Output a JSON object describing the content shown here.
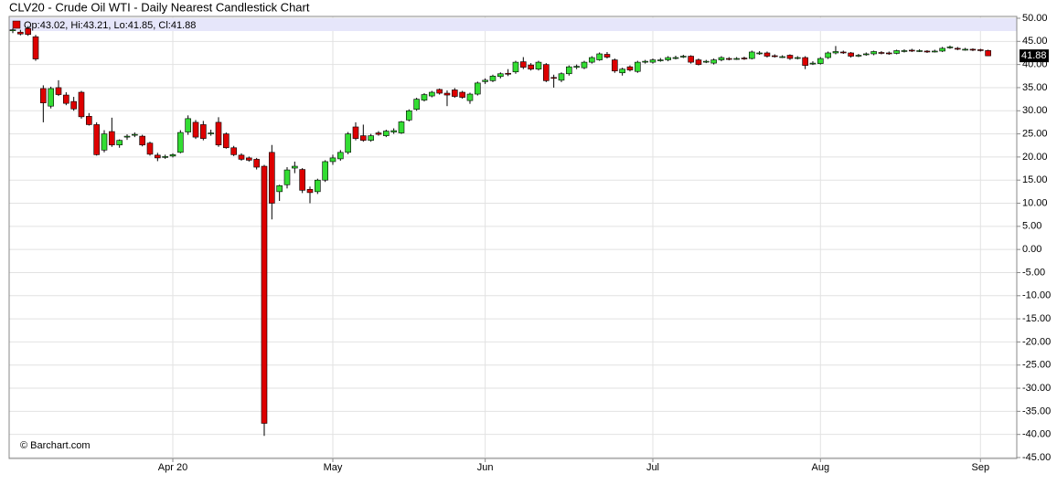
{
  "chart_data": {
    "type": "candlestick",
    "title": "CLV20 - Crude Oil WTI - Daily Nearest Candlestick Chart",
    "header_label": "Op:43.02, Hi:43.21, Lo:41.85, Cl:41.88",
    "last_price_label": "41.88",
    "watermark": "© Barchart.com",
    "up_color": "#33dd33",
    "down_color": "#dd0000",
    "grid": true,
    "ylim": [
      -45,
      50
    ],
    "yticks": [
      {
        "value": 50,
        "label": "50.00"
      },
      {
        "value": 45,
        "label": "45.00"
      },
      {
        "value": 40,
        "label": "40.00"
      },
      {
        "value": 35,
        "label": "35.00"
      },
      {
        "value": 30,
        "label": "30.00"
      },
      {
        "value": 25,
        "label": "25.00"
      },
      {
        "value": 20,
        "label": "20.00"
      },
      {
        "value": 15,
        "label": "15.00"
      },
      {
        "value": 10,
        "label": "10.00"
      },
      {
        "value": 5,
        "label": "5.00"
      },
      {
        "value": 0,
        "label": "0.00"
      },
      {
        "value": -5,
        "label": "-5.00"
      },
      {
        "value": -10,
        "label": "-10.00"
      },
      {
        "value": -15,
        "label": "-15.00"
      },
      {
        "value": -20,
        "label": "-20.00"
      },
      {
        "value": -25,
        "label": "-25.00"
      },
      {
        "value": -30,
        "label": "-30.00"
      },
      {
        "value": -35,
        "label": "-35.00"
      },
      {
        "value": -40,
        "label": "-40.00"
      },
      {
        "value": -45,
        "label": "-45.00"
      }
    ],
    "categories": [
      null,
      null,
      null,
      null,
      null,
      null,
      null,
      null,
      null,
      null,
      null,
      null,
      null,
      null,
      null,
      null,
      null,
      null,
      null,
      null,
      null,
      "Apr 20",
      null,
      null,
      null,
      null,
      null,
      null,
      null,
      null,
      null,
      null,
      null,
      null,
      null,
      null,
      null,
      null,
      null,
      null,
      null,
      null,
      "May",
      null,
      null,
      null,
      null,
      null,
      null,
      null,
      null,
      null,
      null,
      null,
      null,
      null,
      null,
      null,
      null,
      null,
      null,
      null,
      "Jun",
      null,
      null,
      null,
      null,
      null,
      null,
      null,
      null,
      null,
      null,
      null,
      null,
      null,
      null,
      null,
      null,
      null,
      null,
      null,
      null,
      null,
      "Jul",
      null,
      null,
      null,
      null,
      null,
      null,
      null,
      null,
      null,
      null,
      null,
      null,
      null,
      null,
      null,
      null,
      null,
      null,
      null,
      null,
      null,
      "Aug",
      null,
      null,
      null,
      null,
      null,
      null,
      null,
      null,
      null,
      null,
      null,
      null,
      null,
      null,
      null,
      null,
      null,
      null,
      null,
      null,
      "Sep",
      null
    ],
    "ohlc": [
      [
        47.3,
        47.8,
        46.8,
        47.5
      ],
      [
        47.0,
        47.5,
        46.3,
        46.6
      ],
      [
        47.8,
        48.3,
        46.2,
        46.5
      ],
      [
        46.0,
        46.4,
        40.8,
        41.2
      ],
      [
        34.8,
        35.5,
        27.5,
        31.7
      ],
      [
        31.0,
        35.2,
        30.5,
        34.8
      ],
      [
        35.0,
        36.6,
        33.2,
        33.5
      ],
      [
        33.4,
        34.0,
        31.2,
        31.6
      ],
      [
        32.0,
        33.0,
        30.0,
        30.4
      ],
      [
        34.0,
        34.3,
        28.3,
        28.7
      ],
      [
        28.8,
        29.5,
        26.8,
        27.0
      ],
      [
        27.0,
        27.5,
        20.3,
        20.5
      ],
      [
        21.5,
        25.8,
        21.0,
        25.0
      ],
      [
        25.5,
        28.5,
        22.2,
        22.6
      ],
      [
        22.6,
        23.8,
        22.0,
        23.6
      ],
      [
        24.3,
        24.9,
        23.7,
        24.5
      ],
      [
        24.7,
        25.3,
        24.3,
        24.9
      ],
      [
        24.5,
        24.8,
        22.3,
        22.6
      ],
      [
        23.0,
        23.3,
        20.3,
        20.6
      ],
      [
        20.4,
        20.9,
        19.1,
        19.8
      ],
      [
        19.9,
        20.5,
        19.6,
        20.1
      ],
      [
        20.2,
        20.8,
        19.9,
        20.5
      ],
      [
        21.0,
        25.8,
        20.8,
        25.3
      ],
      [
        25.4,
        29.0,
        24.8,
        28.3
      ],
      [
        27.5,
        28.0,
        23.9,
        24.3
      ],
      [
        27.0,
        27.8,
        23.6,
        24.0
      ],
      [
        25.0,
        25.9,
        24.6,
        25.2
      ],
      [
        27.5,
        28.6,
        22.2,
        22.6
      ],
      [
        25.0,
        25.3,
        21.8,
        22.0
      ],
      [
        22.0,
        22.4,
        20.2,
        20.5
      ],
      [
        20.4,
        20.8,
        19.2,
        19.5
      ],
      [
        19.8,
        20.1,
        19.0,
        19.3
      ],
      [
        19.5,
        19.8,
        17.3,
        17.8
      ],
      [
        18.0,
        18.3,
        -40.3,
        -37.6
      ],
      [
        21.0,
        22.6,
        6.5,
        10.0
      ],
      [
        12.5,
        14.0,
        10.5,
        13.8
      ],
      [
        14.0,
        17.8,
        13.2,
        17.2
      ],
      [
        17.6,
        19.0,
        16.5,
        18.0
      ],
      [
        17.3,
        17.6,
        12.2,
        12.8
      ],
      [
        13.0,
        13.6,
        10.0,
        12.3
      ],
      [
        12.5,
        15.3,
        12.0,
        15.0
      ],
      [
        15.0,
        19.3,
        14.6,
        19.0
      ],
      [
        19.0,
        20.5,
        18.3,
        19.8
      ],
      [
        19.6,
        21.5,
        19.2,
        21.0
      ],
      [
        21.0,
        25.4,
        20.6,
        25.0
      ],
      [
        26.5,
        27.5,
        23.6,
        24.0
      ],
      [
        24.6,
        27.0,
        23.3,
        23.6
      ],
      [
        23.6,
        25.0,
        23.3,
        24.6
      ],
      [
        25.2,
        25.6,
        24.6,
        24.9
      ],
      [
        24.6,
        25.9,
        24.3,
        25.6
      ],
      [
        25.4,
        26.2,
        25.0,
        25.7
      ],
      [
        25.2,
        27.8,
        25.0,
        27.6
      ],
      [
        28.0,
        30.3,
        27.7,
        30.0
      ],
      [
        30.3,
        32.8,
        30.0,
        32.5
      ],
      [
        32.3,
        33.8,
        32.0,
        33.5
      ],
      [
        33.2,
        34.3,
        32.9,
        34.0
      ],
      [
        34.6,
        34.8,
        33.5,
        33.8
      ],
      [
        33.8,
        34.4,
        31.0,
        33.4
      ],
      [
        34.5,
        34.9,
        32.8,
        33.1
      ],
      [
        34.0,
        34.3,
        32.6,
        32.9
      ],
      [
        32.2,
        33.9,
        31.5,
        33.6
      ],
      [
        33.6,
        36.3,
        33.3,
        36.0
      ],
      [
        36.3,
        37.0,
        35.8,
        36.6
      ],
      [
        36.5,
        37.8,
        36.2,
        37.5
      ],
      [
        37.4,
        38.3,
        37.0,
        38.0
      ],
      [
        38.1,
        39.0,
        37.5,
        37.9
      ],
      [
        38.4,
        40.8,
        38.0,
        40.5
      ],
      [
        40.6,
        41.6,
        39.0,
        39.4
      ],
      [
        39.9,
        40.3,
        38.7,
        39.0
      ],
      [
        39.0,
        40.8,
        38.7,
        40.5
      ],
      [
        40.0,
        40.3,
        36.2,
        36.5
      ],
      [
        37.2,
        37.8,
        35.0,
        37.0
      ],
      [
        36.6,
        38.3,
        36.2,
        38.0
      ],
      [
        38.0,
        39.8,
        37.6,
        39.5
      ],
      [
        39.4,
        40.0,
        39.0,
        39.6
      ],
      [
        39.3,
        40.8,
        39.0,
        40.5
      ],
      [
        40.5,
        41.8,
        40.2,
        41.5
      ],
      [
        41.0,
        42.6,
        40.8,
        42.3
      ],
      [
        42.2,
        42.7,
        41.3,
        41.6
      ],
      [
        41.0,
        41.3,
        38.2,
        38.6
      ],
      [
        38.2,
        39.3,
        37.6,
        39.0
      ],
      [
        39.5,
        39.8,
        38.5,
        38.8
      ],
      [
        38.5,
        40.8,
        38.2,
        40.5
      ],
      [
        40.5,
        41.0,
        40.2,
        40.7
      ],
      [
        40.5,
        41.3,
        40.2,
        41.0
      ],
      [
        40.9,
        41.4,
        40.6,
        41.0
      ],
      [
        41.0,
        41.8,
        40.7,
        41.5
      ],
      [
        41.4,
        41.9,
        41.1,
        41.5
      ],
      [
        41.7,
        42.1,
        41.4,
        41.8
      ],
      [
        41.8,
        42.0,
        40.2,
        40.5
      ],
      [
        41.0,
        41.3,
        39.8,
        40.0
      ],
      [
        40.6,
        41.0,
        40.3,
        40.7
      ],
      [
        40.3,
        41.3,
        40.0,
        41.0
      ],
      [
        41.0,
        41.8,
        40.7,
        41.5
      ],
      [
        41.3,
        41.6,
        40.9,
        41.2
      ],
      [
        41.2,
        41.6,
        41.0,
        41.3
      ],
      [
        41.4,
        41.7,
        41.0,
        41.3
      ],
      [
        41.3,
        43.0,
        41.1,
        42.7
      ],
      [
        42.4,
        42.9,
        42.1,
        42.5
      ],
      [
        42.5,
        42.8,
        41.5,
        41.8
      ],
      [
        41.9,
        42.2,
        41.5,
        41.8
      ],
      [
        41.6,
        42.0,
        41.4,
        41.7
      ],
      [
        42.0,
        42.2,
        41.0,
        41.3
      ],
      [
        41.4,
        41.8,
        41.1,
        41.5
      ],
      [
        41.5,
        41.8,
        39.0,
        39.8
      ],
      [
        40.2,
        40.7,
        39.9,
        40.3
      ],
      [
        40.2,
        41.6,
        40.0,
        41.3
      ],
      [
        41.5,
        42.8,
        41.2,
        42.5
      ],
      [
        42.5,
        44.0,
        42.2,
        42.8
      ],
      [
        42.7,
        43.0,
        42.3,
        42.6
      ],
      [
        42.5,
        42.7,
        41.5,
        41.8
      ],
      [
        41.9,
        42.3,
        41.6,
        42.0
      ],
      [
        42.2,
        42.6,
        41.9,
        42.3
      ],
      [
        42.3,
        43.0,
        42.0,
        42.8
      ],
      [
        42.6,
        42.9,
        42.2,
        42.5
      ],
      [
        42.5,
        42.8,
        42.1,
        42.4
      ],
      [
        42.4,
        43.2,
        42.2,
        43.0
      ],
      [
        42.9,
        43.3,
        42.6,
        43.0
      ],
      [
        43.1,
        43.4,
        42.7,
        43.0
      ],
      [
        42.9,
        43.3,
        42.7,
        43.0
      ],
      [
        42.9,
        43.1,
        42.5,
        42.8
      ],
      [
        42.8,
        43.2,
        42.6,
        42.9
      ],
      [
        42.9,
        43.8,
        42.7,
        43.5
      ],
      [
        43.7,
        44.1,
        43.4,
        43.8
      ],
      [
        43.5,
        43.8,
        43.1,
        43.4
      ],
      [
        43.3,
        43.6,
        43.0,
        43.3
      ],
      [
        43.3,
        43.5,
        42.9,
        43.2
      ],
      [
        43.2,
        43.4,
        42.8,
        43.1
      ],
      [
        43.02,
        43.21,
        41.85,
        41.88
      ]
    ]
  }
}
